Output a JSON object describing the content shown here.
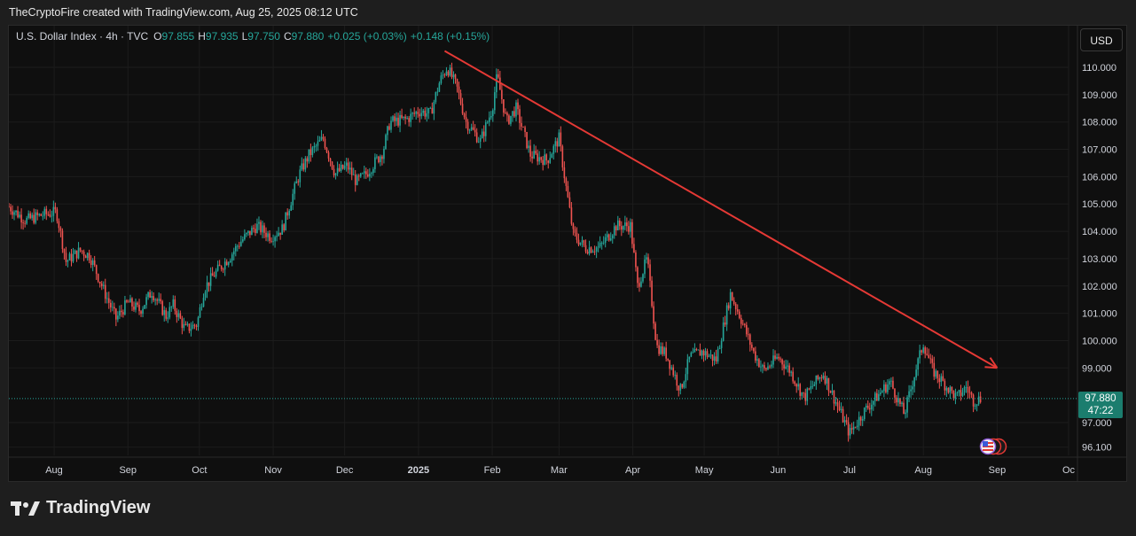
{
  "header": {
    "text": "TheCryptoFire created with TradingView.com, Aug 25, 2025 08:12 UTC"
  },
  "legend": {
    "symbol": "U.S. Dollar Index · 4h · TVC",
    "o_label": "O",
    "o": "97.855",
    "h_label": "H",
    "h": "97.935",
    "l_label": "L",
    "l": "97.750",
    "c_label": "C",
    "c": "97.880",
    "change": "+0.025 (+0.03%)",
    "change2": "+0.148 (+0.15%)"
  },
  "currency_button": "USD",
  "last_price": {
    "value": "97.880",
    "countdown": "47:22"
  },
  "brand": {
    "name": "TradingView"
  },
  "colors": {
    "up": "#26a69a",
    "down": "#ef5350",
    "trendline": "#e53935",
    "price_tag": "#1b7d6e",
    "background": "#0f0f0f"
  },
  "chart_data": {
    "type": "candlestick",
    "title": "U.S. Dollar Index · 4h · TVC",
    "y_ticks": [
      "110.000",
      "109.000",
      "108.000",
      "107.000",
      "106.000",
      "105.000",
      "104.000",
      "103.000",
      "102.000",
      "101.000",
      "100.000",
      "99.000",
      "97.000",
      "96.100"
    ],
    "y_tick_values": [
      110,
      109,
      108,
      107,
      106,
      105,
      104,
      103,
      102,
      101,
      100,
      99,
      97,
      96.1
    ],
    "x_ticks": [
      "Aug",
      "Sep",
      "Oct",
      "Nov",
      "Dec",
      "2025",
      "Feb",
      "Mar",
      "Apr",
      "May",
      "Jun",
      "Jul",
      "Aug",
      "Sep",
      "Oc"
    ],
    "x_tick_dates": [
      "2024-08-01",
      "2024-09-01",
      "2024-10-01",
      "2024-11-01",
      "2024-12-01",
      "2025-01-01",
      "2025-02-01",
      "2025-03-01",
      "2025-04-01",
      "2025-05-01",
      "2025-06-01",
      "2025-07-01",
      "2025-08-01",
      "2025-09-01",
      "2025-10-01"
    ],
    "x_range": [
      "2024-07-13",
      "2025-10-01"
    ],
    "y_range": [
      95.8,
      111.2
    ],
    "series_path": [
      [
        "2024-07-13",
        104.9
      ],
      [
        "2024-07-20",
        104.4
      ],
      [
        "2024-07-27",
        104.6
      ],
      [
        "2024-08-02",
        104.7
      ],
      [
        "2024-08-06",
        102.9
      ],
      [
        "2024-08-12",
        103.3
      ],
      [
        "2024-08-16",
        103.1
      ],
      [
        "2024-08-22",
        101.8
      ],
      [
        "2024-08-27",
        100.8
      ],
      [
        "2024-09-01",
        101.4
      ],
      [
        "2024-09-06",
        101.1
      ],
      [
        "2024-09-11",
        101.8
      ],
      [
        "2024-09-17",
        100.9
      ],
      [
        "2024-09-20",
        101.3
      ],
      [
        "2024-09-25",
        100.4
      ],
      [
        "2024-09-30",
        100.6
      ],
      [
        "2024-10-03",
        101.9
      ],
      [
        "2024-10-07",
        102.4
      ],
      [
        "2024-10-14",
        103.1
      ],
      [
        "2024-10-18",
        103.6
      ],
      [
        "2024-10-25",
        104.2
      ],
      [
        "2024-10-31",
        103.8
      ],
      [
        "2024-11-05",
        104.1
      ],
      [
        "2024-11-08",
        105.0
      ],
      [
        "2024-11-12",
        106.1
      ],
      [
        "2024-11-16",
        106.8
      ],
      [
        "2024-11-22",
        107.4
      ],
      [
        "2024-11-27",
        106.1
      ],
      [
        "2024-12-02",
        106.4
      ],
      [
        "2024-12-06",
        105.8
      ],
      [
        "2024-12-10",
        106.1
      ],
      [
        "2024-12-17",
        106.9
      ],
      [
        "2024-12-20",
        108.0
      ],
      [
        "2024-12-27",
        108.1
      ],
      [
        "2025-01-01",
        108.4
      ],
      [
        "2025-01-06",
        108.3
      ],
      [
        "2025-01-10",
        109.5
      ],
      [
        "2025-01-13",
        110.0
      ],
      [
        "2025-01-17",
        109.3
      ],
      [
        "2025-01-21",
        108.0
      ],
      [
        "2025-01-27",
        107.3
      ],
      [
        "2025-02-01",
        108.5
      ],
      [
        "2025-02-03",
        109.7
      ],
      [
        "2025-02-07",
        108.0
      ],
      [
        "2025-02-11",
        108.5
      ],
      [
        "2025-02-17",
        106.8
      ],
      [
        "2025-02-24",
        106.6
      ],
      [
        "2025-03-01",
        107.4
      ],
      [
        "2025-03-04",
        105.6
      ],
      [
        "2025-03-07",
        103.9
      ],
      [
        "2025-03-12",
        103.4
      ],
      [
        "2025-03-18",
        103.4
      ],
      [
        "2025-03-25",
        104.2
      ],
      [
        "2025-03-31",
        104.2
      ],
      [
        "2025-04-03",
        102.0
      ],
      [
        "2025-04-07",
        103.0
      ],
      [
        "2025-04-11",
        99.8
      ],
      [
        "2025-04-15",
        99.5
      ],
      [
        "2025-04-21",
        98.2
      ],
      [
        "2025-04-25",
        99.4
      ],
      [
        "2025-04-30",
        99.6
      ],
      [
        "2025-05-06",
        99.3
      ],
      [
        "2025-05-12",
        101.7
      ],
      [
        "2025-05-16",
        100.9
      ],
      [
        "2025-05-22",
        99.5
      ],
      [
        "2025-05-26",
        98.9
      ],
      [
        "2025-06-01",
        99.4
      ],
      [
        "2025-06-06",
        98.9
      ],
      [
        "2025-06-12",
        97.9
      ],
      [
        "2025-06-16",
        98.4
      ],
      [
        "2025-06-20",
        98.8
      ],
      [
        "2025-06-25",
        97.8
      ],
      [
        "2025-07-01",
        96.6
      ],
      [
        "2025-07-07",
        97.4
      ],
      [
        "2025-07-14",
        98.1
      ],
      [
        "2025-07-18",
        98.5
      ],
      [
        "2025-07-24",
        97.3
      ],
      [
        "2025-07-29",
        99.0
      ],
      [
        "2025-08-01",
        99.9
      ],
      [
        "2025-08-05",
        98.9
      ],
      [
        "2025-08-11",
        98.3
      ],
      [
        "2025-08-15",
        97.9
      ],
      [
        "2025-08-19",
        98.3
      ],
      [
        "2025-08-22",
        97.8
      ],
      [
        "2025-08-25",
        97.88
      ]
    ],
    "trendline": {
      "from": [
        "2025-01-12",
        110.6
      ],
      "to": [
        "2025-09-01",
        99.0
      ],
      "arrow": true
    },
    "last_value": 97.88,
    "grid": true
  }
}
